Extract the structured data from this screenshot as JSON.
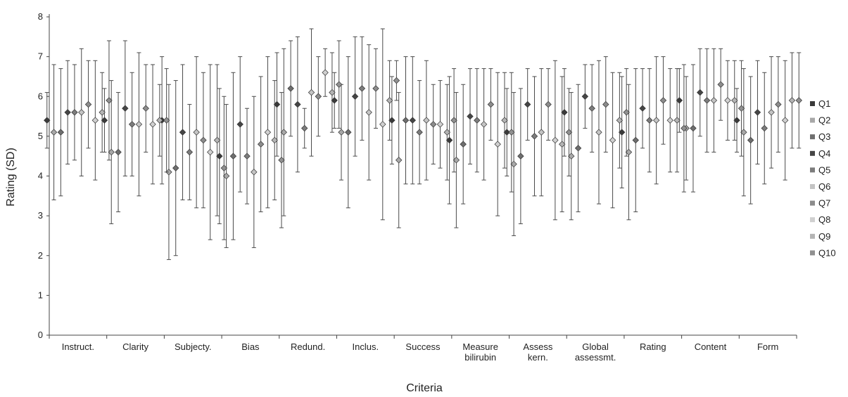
{
  "chart_data": {
    "type": "scatter",
    "title": "",
    "xlabel": "Criteria",
    "ylabel": "Rating (SD)",
    "ylim": [
      0,
      8
    ],
    "yticks": [
      "0",
      "1",
      "2",
      "3",
      "4",
      "5",
      "6",
      "7",
      "8"
    ],
    "grid": false,
    "legend_position": "right",
    "categories": [
      [
        "Instruct."
      ],
      [
        "Clarity"
      ],
      [
        "Subjecty."
      ],
      [
        "Bias"
      ],
      [
        "Redund."
      ],
      [
        "Inclus."
      ],
      [
        "Success"
      ],
      [
        "Measure",
        "bilirubin"
      ],
      [
        "Assess",
        "kern."
      ],
      [
        "Global",
        "assessmt."
      ],
      [
        "Rating"
      ],
      [
        "Content"
      ],
      [
        "Form"
      ]
    ],
    "series_colors": [
      "#3a3a3a",
      "#a8a8a8",
      "#6e6e6e",
      "#454545",
      "#7c7c7c",
      "#c4c4c4",
      "#8c8c8c",
      "#d0d0d0",
      "#b4b4b4",
      "#909090"
    ],
    "series": [
      {
        "name": "Q1",
        "mean": [
          5.4,
          5.4,
          5.4,
          4.5,
          5.8,
          5.9,
          5.4,
          4.9,
          5.1,
          5.6,
          5.1,
          5.9,
          5.4
        ],
        "sd": [
          0.7,
          0.8,
          1.6,
          1.7,
          1.3,
          0.7,
          1.1,
          1.6,
          1.1,
          1.1,
          1.4,
          0.8,
          0.8
        ]
      },
      {
        "name": "Q2",
        "mean": [
          5.1,
          4.6,
          4.1,
          4.0,
          5.1,
          5.1,
          4.4,
          4.4,
          4.3,
          4.5,
          4.6,
          5.2,
          5.1
        ],
        "sd": [
          1.7,
          1.8,
          2.2,
          1.8,
          2.1,
          1.2,
          1.7,
          1.7,
          1.8,
          1.6,
          1.7,
          1.3,
          1.6
        ]
      },
      {
        "name": "Q3",
        "mean": [
          5.1,
          4.6,
          4.2,
          4.5,
          6.2,
          5.1,
          5.4,
          4.8,
          4.5,
          4.7,
          4.9,
          5.2,
          4.9
        ],
        "sd": [
          1.6,
          1.5,
          2.2,
          2.1,
          1.2,
          1.9,
          1.6,
          1.5,
          1.7,
          1.6,
          1.8,
          1.6,
          1.6
        ]
      },
      {
        "name": "Q4",
        "mean": [
          5.6,
          5.7,
          5.1,
          5.3,
          5.8,
          6.0,
          5.4,
          5.5,
          5.8,
          6.0,
          5.7,
          6.1,
          5.6
        ],
        "sd": [
          1.3,
          1.7,
          1.7,
          1.7,
          1.7,
          1.5,
          1.6,
          1.2,
          0.9,
          0.8,
          1.0,
          1.1,
          1.3
        ]
      },
      {
        "name": "Q5",
        "mean": [
          5.6,
          5.3,
          4.6,
          4.5,
          5.2,
          6.2,
          5.1,
          5.4,
          5.0,
          5.7,
          5.4,
          5.9,
          5.2
        ],
        "sd": [
          1.2,
          1.3,
          1.2,
          1.2,
          0.5,
          1.3,
          1.3,
          1.3,
          1.5,
          1.1,
          1.3,
          1.3,
          1.4
        ]
      },
      {
        "name": "Q6",
        "mean": [
          5.6,
          5.3,
          5.1,
          4.1,
          6.1,
          5.6,
          5.4,
          5.3,
          5.1,
          5.1,
          5.4,
          5.9,
          5.6
        ],
        "sd": [
          1.6,
          1.8,
          1.9,
          1.9,
          1.6,
          1.7,
          1.5,
          1.4,
          1.6,
          1.8,
          1.6,
          1.3,
          1.4
        ]
      },
      {
        "name": "Q7",
        "mean": [
          5.8,
          5.7,
          4.9,
          4.8,
          6.0,
          6.2,
          5.3,
          5.8,
          5.8,
          5.8,
          5.9,
          6.3,
          5.8
        ],
        "sd": [
          1.1,
          1.1,
          1.7,
          1.7,
          1.0,
          1.0,
          1.0,
          0.9,
          0.9,
          1.2,
          1.1,
          0.9,
          1.2
        ]
      },
      {
        "name": "Q8",
        "mean": [
          5.4,
          5.3,
          4.6,
          5.1,
          6.6,
          5.3,
          5.3,
          4.8,
          4.9,
          4.9,
          5.4,
          5.9,
          5.4
        ],
        "sd": [
          1.5,
          1.5,
          2.2,
          1.9,
          0.6,
          2.4,
          1.1,
          1.8,
          2.0,
          1.7,
          1.3,
          1.0,
          1.5
        ]
      },
      {
        "name": "Q9",
        "mean": [
          5.6,
          5.4,
          4.9,
          4.9,
          6.1,
          5.9,
          5.1,
          5.4,
          4.8,
          5.4,
          5.4,
          5.9,
          5.9
        ],
        "sd": [
          1.0,
          0.9,
          1.9,
          1.5,
          1.0,
          1.0,
          1.2,
          1.2,
          1.7,
          1.2,
          1.3,
          1.0,
          1.2
        ]
      },
      {
        "name": "Q10",
        "mean": [
          5.9,
          5.4,
          4.2,
          4.4,
          6.3,
          6.4,
          5.4,
          5.1,
          5.1,
          5.6,
          5.2,
          5.7,
          5.9
        ],
        "sd": [
          1.5,
          1.3,
          1.8,
          1.7,
          1.1,
          0.5,
          1.3,
          1.5,
          1.1,
          1.1,
          1.6,
          1.2,
          1.2
        ]
      }
    ]
  }
}
